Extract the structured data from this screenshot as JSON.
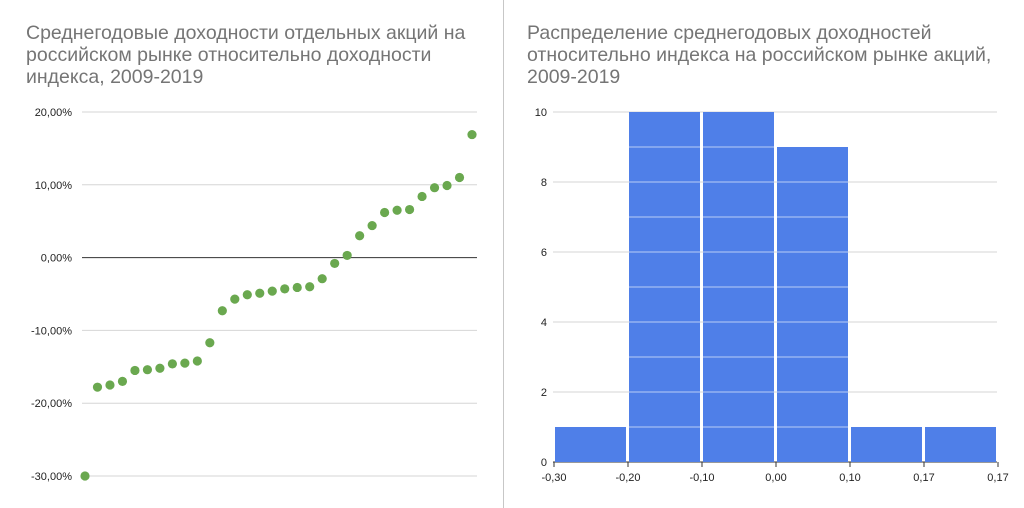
{
  "colors": {
    "scatter_point": "#6aa84f",
    "histogram_bar": "#4f7fe8",
    "grid": "#d6d6d6",
    "zero_line": "#333333"
  },
  "chart_data": [
    {
      "type": "scatter",
      "title": "Среднегодовые доходности отдельных акций на российском рынке относительно доходности индекса, 2009-2019",
      "ylim": [
        -0.3,
        0.2
      ],
      "y_ticks": [
        0.2,
        0.1,
        0.0,
        -0.1,
        -0.2,
        -0.3
      ],
      "y_tick_labels": [
        "20,00%",
        "10,00%",
        "0,00%",
        "-10,00%",
        "-20,00%",
        "-30,00%"
      ],
      "grid": true,
      "x": [
        1,
        2,
        3,
        4,
        5,
        6,
        7,
        8,
        9,
        10,
        11,
        12,
        13,
        14,
        15,
        16,
        17,
        18,
        19,
        20,
        21,
        22,
        23,
        24,
        25,
        26,
        27,
        28,
        29,
        30,
        31,
        32
      ],
      "values": [
        -0.3,
        -0.178,
        -0.175,
        -0.17,
        -0.155,
        -0.154,
        -0.152,
        -0.146,
        -0.145,
        -0.142,
        -0.117,
        -0.073,
        -0.057,
        -0.051,
        -0.049,
        -0.046,
        -0.043,
        -0.041,
        -0.04,
        -0.029,
        -0.008,
        0.003,
        0.03,
        0.044,
        0.062,
        0.065,
        0.066,
        0.084,
        0.096,
        0.099,
        0.11,
        0.169
      ]
    },
    {
      "type": "bar",
      "title": "Распределение среднегодовых доходностей относительно индекса на российском рынке акций, 2009-2019",
      "categories": [
        "-0,30 – -0,20",
        "-0,20 – -0,10",
        "-0,10 – 0,00",
        "0,00 – 0,10",
        "0,10 – 0,17",
        "0,17 – 0,17"
      ],
      "values": [
        1,
        10,
        10,
        9,
        1,
        1
      ],
      "x_tick_labels": [
        "-0,30",
        "-0,20",
        "-0,10",
        "0,00",
        "0,10",
        "0,17",
        "0,17"
      ],
      "y_ticks": [
        0,
        2,
        4,
        6,
        8,
        10
      ],
      "y_tick_labels": [
        "0",
        "2",
        "4",
        "6",
        "8",
        "10"
      ],
      "ylim": [
        0,
        10
      ],
      "grid": true
    }
  ]
}
